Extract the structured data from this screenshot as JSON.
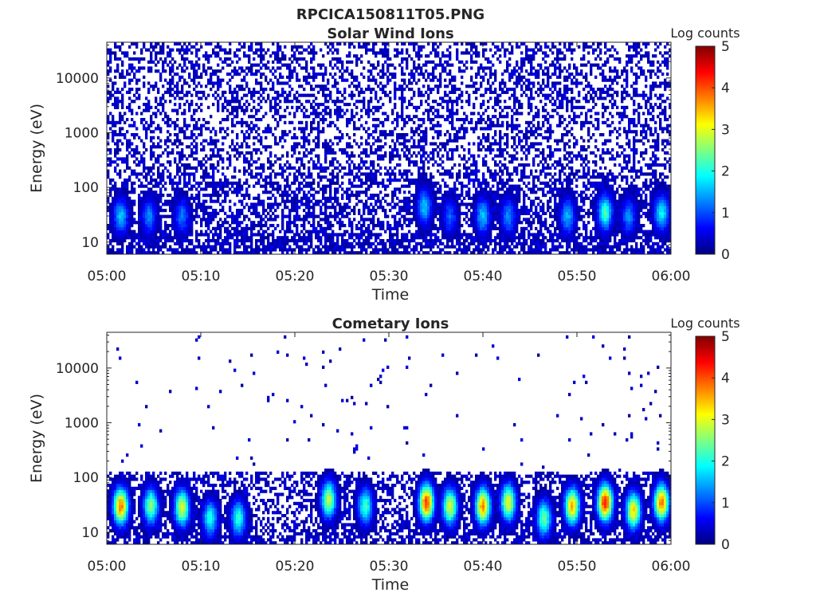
{
  "figure_title": "RPCICA150811T05.PNG",
  "chart_data": [
    {
      "type": "heatmap",
      "title": "Solar Wind Ions",
      "xlabel": "Time",
      "ylabel": "Energy (eV)",
      "x_ticks": [
        "05:00",
        "05:10",
        "05:20",
        "05:30",
        "05:40",
        "05:50",
        "06:00"
      ],
      "x_range": [
        "05:00",
        "06:00"
      ],
      "y_scale": "log",
      "y_ticks": [
        "10",
        "100",
        "1000",
        "10000"
      ],
      "y_range": [
        6,
        45000
      ],
      "colorbar": {
        "label": "Log counts",
        "range": [
          0,
          5
        ],
        "ticks": [
          "0",
          "1",
          "2",
          "3",
          "4",
          "5"
        ],
        "colormap": "jet"
      },
      "background": "sparse low counts (~0.2-0.5) across all energies",
      "hotspots": [
        {
          "time": "05:01.5",
          "energy_eV": 30,
          "log_counts": 1.6
        },
        {
          "time": "05:04.5",
          "energy_eV": 30,
          "log_counts": 1.3
        },
        {
          "time": "05:08",
          "energy_eV": 30,
          "log_counts": 1.2
        },
        {
          "time": "05:33.8",
          "energy_eV": 45,
          "log_counts": 1.6
        },
        {
          "time": "05:36.5",
          "energy_eV": 30,
          "log_counts": 1.1
        },
        {
          "time": "05:40",
          "energy_eV": 30,
          "log_counts": 1.6
        },
        {
          "time": "05:42.7",
          "energy_eV": 30,
          "log_counts": 1.3
        },
        {
          "time": "05:49",
          "energy_eV": 30,
          "log_counts": 1.5
        },
        {
          "time": "05:53",
          "energy_eV": 35,
          "log_counts": 2.2
        },
        {
          "time": "05:55.5",
          "energy_eV": 30,
          "log_counts": 1.3
        },
        {
          "time": "05:59",
          "energy_eV": 35,
          "log_counts": 1.9
        }
      ]
    },
    {
      "type": "heatmap",
      "title": "Cometary Ions",
      "xlabel": "Time",
      "ylabel": "Energy (eV)",
      "x_ticks": [
        "05:00",
        "05:10",
        "05:20",
        "05:30",
        "05:40",
        "05:50",
        "06:00"
      ],
      "x_range": [
        "05:00",
        "06:00"
      ],
      "y_scale": "log",
      "y_ticks": [
        "10",
        "100",
        "1000",
        "10000"
      ],
      "y_range": [
        6,
        45000
      ],
      "colorbar": {
        "label": "Log counts",
        "range": [
          0,
          5
        ],
        "ticks": [
          "0",
          "1",
          "2",
          "3",
          "4",
          "5"
        ],
        "colormap": "jet"
      },
      "background": "dense low counts below ~120 eV, isolated single counts above",
      "hotspots": [
        {
          "time": "05:01.5",
          "energy_eV": 30,
          "log_counts": 3.8
        },
        {
          "time": "05:04.7",
          "energy_eV": 30,
          "log_counts": 2.6
        },
        {
          "time": "05:08",
          "energy_eV": 28,
          "log_counts": 3.0
        },
        {
          "time": "05:11",
          "energy_eV": 18,
          "log_counts": 2.0
        },
        {
          "time": "05:14",
          "energy_eV": 18,
          "log_counts": 2.1
        },
        {
          "time": "05:23.6",
          "energy_eV": 40,
          "log_counts": 2.8
        },
        {
          "time": "05:27.5",
          "energy_eV": 30,
          "log_counts": 2.2
        },
        {
          "time": "05:34",
          "energy_eV": 35,
          "log_counts": 4.1
        },
        {
          "time": "05:36.5",
          "energy_eV": 30,
          "log_counts": 3.0
        },
        {
          "time": "05:40",
          "energy_eV": 30,
          "log_counts": 3.7
        },
        {
          "time": "05:42.7",
          "energy_eV": 35,
          "log_counts": 3.1
        },
        {
          "time": "05:46.5",
          "energy_eV": 18,
          "log_counts": 2.4
        },
        {
          "time": "05:49.5",
          "energy_eV": 30,
          "log_counts": 3.5
        },
        {
          "time": "05:53",
          "energy_eV": 35,
          "log_counts": 4.3
        },
        {
          "time": "05:56",
          "energy_eV": 25,
          "log_counts": 3.3
        },
        {
          "time": "05:59",
          "energy_eV": 35,
          "log_counts": 3.8
        }
      ]
    }
  ]
}
